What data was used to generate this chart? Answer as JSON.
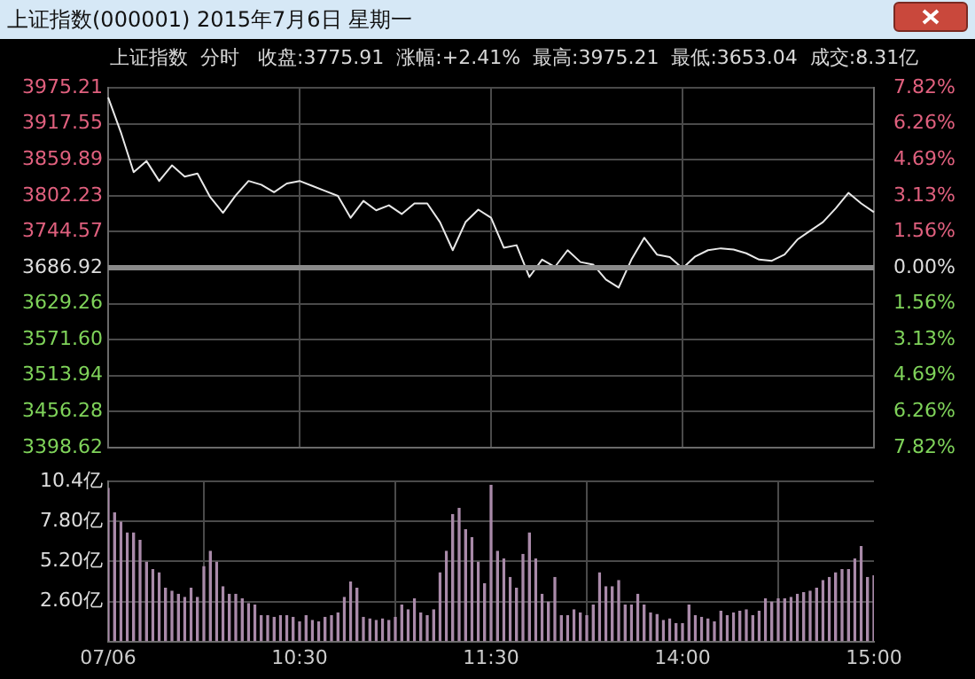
{
  "chart_data": [
    {
      "type": "line",
      "title": "上证指数(000001) 2015年7月6日 星期一",
      "subtitle": "上证指数  分时   收盘:3775.91  涨幅:+2.41%  最高:3975.21  最低:3653.04  成交:8.31亿",
      "categories": [
        null,
        null,
        null,
        null,
        null,
        null,
        null,
        null,
        null,
        null,
        null,
        null,
        null,
        null,
        null,
        null,
        null,
        null,
        null,
        null,
        null,
        null,
        null,
        null,
        null,
        null,
        null,
        null,
        null,
        null,
        null,
        null,
        null,
        null,
        null,
        null,
        null,
        null,
        null,
        null,
        null,
        null,
        null,
        null,
        null,
        null,
        null,
        null,
        null,
        null,
        null,
        null,
        null,
        null,
        null,
        null,
        null,
        null,
        null,
        null,
        null
      ],
      "series": [
        {
          "color": "#e8e8e8",
          "values": [
            3960,
            3904,
            3840,
            3858,
            3826,
            3851,
            3833,
            3838,
            3800,
            3775,
            3803,
            3826,
            3820,
            3808,
            3822,
            3826,
            3818,
            3810,
            3802,
            3767,
            3794,
            3779,
            3787,
            3773,
            3790,
            3790,
            3760,
            3715,
            3760,
            3780,
            3767,
            3719,
            3723,
            3672,
            3700,
            3688,
            3715,
            3696,
            3692,
            3668,
            3655,
            3700,
            3735,
            3708,
            3704,
            3686,
            3705,
            3715,
            3718,
            3716,
            3710,
            3700,
            3698,
            3708,
            3732,
            3746,
            3760,
            3782,
            3807,
            3790,
            3776
          ]
        }
      ],
      "ylim": [
        3398.62,
        3975.21
      ],
      "yticks": [
        3975.21,
        3917.55,
        3859.89,
        3802.23,
        3744.57,
        3686.92,
        3629.26,
        {
          "value": 3571.6,
          "label": "3571.60"
        },
        3513.94,
        3456.28,
        3398.62
      ],
      "y2lim": [
        -7.82,
        7.82
      ],
      "y2ticks": [
        {
          "value": 7.82,
          "label": "7.82%"
        },
        {
          "value": 6.26,
          "label": "6.26%"
        },
        {
          "value": 4.69,
          "label": "4.69%"
        },
        {
          "value": 3.13,
          "label": "3.13%"
        },
        {
          "value": 1.56,
          "label": "1.56%"
        },
        {
          "value": 0,
          "label": "0.00%"
        },
        {
          "value": -1.56,
          "label": "1.56%"
        },
        {
          "value": -3.13,
          "label": "3.13%"
        },
        {
          "value": -4.69,
          "label": "4.69%"
        },
        {
          "value": -6.26,
          "label": "6.26%"
        },
        {
          "value": -7.82,
          "label": "7.82%"
        }
      ],
      "ref_lines": [
        {
          "axis": "y",
          "value": 3686.92,
          "color": "#8a8a8a"
        }
      ],
      "grid": true,
      "legend": false,
      "marker": "none",
      "line_style": "solid",
      "tick_labels": "y"
    },
    {
      "type": "bar",
      "color": "#a98aa9",
      "categories": [
        "07/06",
        null,
        null,
        null,
        null,
        null,
        null,
        null,
        null,
        null,
        null,
        null,
        null,
        null,
        null,
        null,
        null,
        null,
        null,
        null,
        null,
        null,
        null,
        null,
        null,
        null,
        null,
        null,
        null,
        null,
        "10:30",
        null,
        null,
        null,
        null,
        null,
        null,
        null,
        null,
        null,
        null,
        null,
        null,
        null,
        null,
        null,
        null,
        null,
        null,
        null,
        null,
        null,
        null,
        null,
        null,
        null,
        null,
        null,
        null,
        null,
        "11:30",
        null,
        null,
        null,
        null,
        null,
        null,
        null,
        null,
        null,
        null,
        null,
        null,
        null,
        null,
        null,
        null,
        null,
        null,
        null,
        null,
        null,
        null,
        null,
        null,
        null,
        null,
        null,
        null,
        null,
        "14:00",
        null,
        null,
        null,
        null,
        null,
        null,
        null,
        null,
        null,
        null,
        null,
        null,
        null,
        null,
        null,
        null,
        null,
        null,
        null,
        null,
        null,
        null,
        null,
        null,
        null,
        null,
        null,
        null,
        null,
        "15:00"
      ],
      "values": [
        10.0,
        8.4,
        7.8,
        7.1,
        7.1,
        6.6,
        5.2,
        4.7,
        4.5,
        3.5,
        3.3,
        3.1,
        2.9,
        3.5,
        2.9,
        4.9,
        5.9,
        5.2,
        3.6,
        3.1,
        3.1,
        2.8,
        2.5,
        2.4,
        1.7,
        1.7,
        1.6,
        1.7,
        1.7,
        1.6,
        1.3,
        1.7,
        1.4,
        1.3,
        1.6,
        1.7,
        1.9,
        2.9,
        3.9,
        3.5,
        1.6,
        1.5,
        1.4,
        1.5,
        1.4,
        1.6,
        2.4,
        2.1,
        2.8,
        1.9,
        1.7,
        2.1,
        4.5,
        5.9,
        8.3,
        8.7,
        7.3,
        6.8,
        5.2,
        3.8,
        10.2,
        5.9,
        5.4,
        4.2,
        3.5,
        5.7,
        7.1,
        5.4,
        3.1,
        2.6,
        4.2,
        1.7,
        1.7,
        2.1,
        1.9,
        1.7,
        2.4,
        4.5,
        3.6,
        3.6,
        4.0,
        2.4,
        2.4,
        3.1,
        2.4,
        1.9,
        1.8,
        1.4,
        1.5,
        1.2,
        1.2,
        2.4,
        1.7,
        1.6,
        1.5,
        1.3,
        2.0,
        1.7,
        1.9,
        2.0,
        2.1,
        1.7,
        2.0,
        2.8,
        2.6,
        2.8,
        2.8,
        2.9,
        3.1,
        3.2,
        3.3,
        3.5,
        4.0,
        4.2,
        4.5,
        4.7,
        4.7,
        5.4,
        6.2,
        4.2,
        4.3
      ],
      "ylim": [
        0,
        10.4
      ],
      "yticks": [
        {
          "value": 2.6,
          "label": "2.60亿"
        },
        {
          "value": 5.2,
          "label": "5.20亿"
        },
        {
          "value": 7.8,
          "label": "7.80亿"
        },
        {
          "value": 10.4,
          "label": "10.4亿"
        }
      ],
      "grid": true,
      "legend": false
    }
  ]
}
